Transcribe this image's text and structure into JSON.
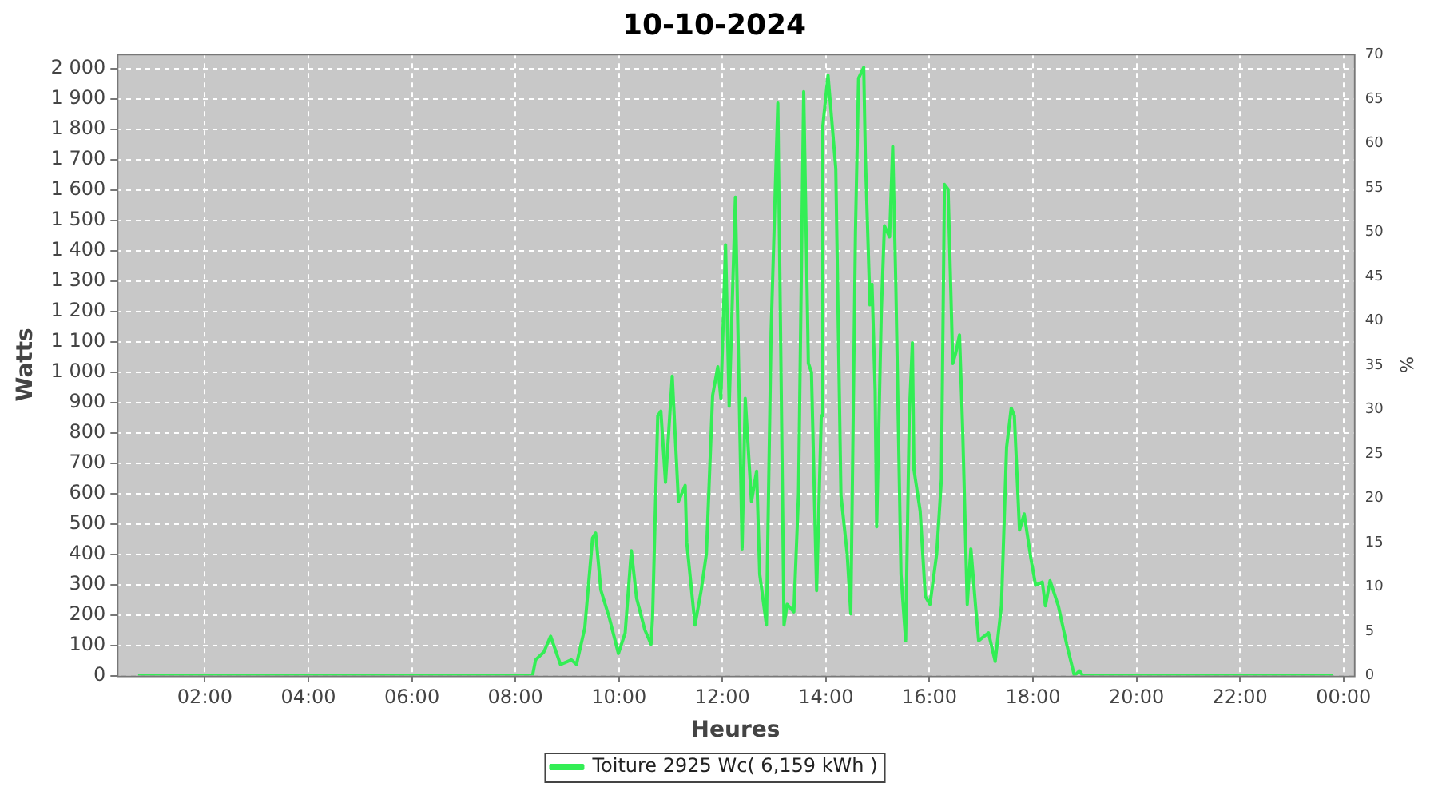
{
  "chart_data": {
    "type": "line",
    "title": "10-10-2024",
    "xlabel": "Heures",
    "ylabel": "Watts",
    "y2label": "%",
    "x": [
      0.71,
      8.33,
      8.39,
      8.55,
      8.68,
      8.87,
      9.08,
      9.18,
      9.34,
      9.49,
      9.55,
      9.65,
      9.81,
      9.99,
      10.12,
      10.24,
      10.34,
      10.5,
      10.62,
      10.65,
      10.75,
      10.81,
      10.9,
      11.03,
      11.15,
      11.28,
      11.31,
      11.47,
      11.59,
      11.69,
      11.81,
      11.91,
      11.97,
      12.06,
      12.13,
      12.25,
      12.38,
      12.44,
      12.56,
      12.66,
      12.72,
      12.85,
      12.94,
      13.07,
      13.19,
      13.25,
      13.38,
      13.47,
      13.57,
      13.66,
      13.72,
      13.82,
      13.91,
      13.94,
      14.04,
      14.19,
      14.29,
      14.41,
      14.48,
      14.57,
      14.63,
      14.73,
      14.76,
      14.85,
      14.89,
      14.95,
      14.98,
      15.07,
      15.13,
      15.23,
      15.29,
      15.35,
      15.45,
      15.54,
      15.61,
      15.67,
      15.7,
      15.82,
      15.92,
      16.01,
      16.14,
      16.23,
      16.29,
      16.36,
      16.45,
      16.51,
      16.58,
      16.64,
      16.73,
      16.8,
      16.89,
      16.95,
      17.14,
      17.27,
      17.39,
      17.49,
      17.58,
      17.64,
      17.74,
      17.83,
      17.96,
      18.05,
      18.18,
      18.24,
      18.33,
      18.49,
      18.65,
      18.8,
      18.9,
      18.96,
      23.79
    ],
    "series": [
      {
        "name": "Toiture 2925 Wc( 6,159 kWh )",
        "color": "#33ee55",
        "values": [
          0,
          0,
          52,
          78,
          130,
          37,
          52,
          37,
          157,
          454,
          470,
          282,
          193,
          73,
          141,
          412,
          256,
          151,
          104,
          193,
          856,
          872,
          637,
          987,
          574,
          627,
          439,
          167,
          282,
          402,
          924,
          1018,
          914,
          1420,
          888,
          1577,
          418,
          914,
          574,
          674,
          334,
          167,
          1133,
          1887,
          167,
          235,
          210,
          600,
          1925,
          1030,
          1000,
          280,
          857,
          1812,
          1979,
          1671,
          595,
          402,
          204,
          1462,
          1969,
          2005,
          1723,
          1222,
          1290,
          940,
          491,
          1201,
          1483,
          1446,
          1744,
          1290,
          334,
          115,
          856,
          1097,
          679,
          543,
          261,
          235,
          402,
          647,
          1619,
          1603,
          1029,
          1065,
          1123,
          820,
          235,
          418,
          230,
          115,
          141,
          47,
          230,
          752,
          882,
          856,
          480,
          533,
          386,
          298,
          308,
          230,
          313,
          230,
          104,
          0,
          16,
          0,
          0
        ]
      }
    ],
    "xlim": [
      0.3,
      24.2
    ],
    "xticks": [
      {
        "value": 2,
        "label": "02:00"
      },
      {
        "value": 4,
        "label": "04:00"
      },
      {
        "value": 6,
        "label": "06:00"
      },
      {
        "value": 8,
        "label": "08:00"
      },
      {
        "value": 10,
        "label": "10:00"
      },
      {
        "value": 12,
        "label": "12:00"
      },
      {
        "value": 14,
        "label": "14:00"
      },
      {
        "value": 16,
        "label": "16:00"
      },
      {
        "value": 18,
        "label": "18:00"
      },
      {
        "value": 20,
        "label": "20:00"
      },
      {
        "value": 22,
        "label": "22:00"
      },
      {
        "value": 24,
        "label": "00:00"
      }
    ],
    "ylim": [
      0,
      2050
    ],
    "yticks": [
      0,
      100,
      200,
      300,
      400,
      500,
      600,
      700,
      800,
      900,
      {
        "value": 1000,
        "label": "1 000"
      },
      {
        "value": 1100,
        "label": "1 100"
      },
      {
        "value": 1200,
        "label": "1 200"
      },
      {
        "value": 1300,
        "label": "1 300"
      },
      {
        "value": 1400,
        "label": "1 400"
      },
      {
        "value": 1500,
        "label": "1 500"
      },
      {
        "value": 1600,
        "label": "1 600"
      },
      {
        "value": 1700,
        "label": "1 700"
      },
      {
        "value": 1800,
        "label": "1 800"
      },
      {
        "value": 1900,
        "label": "1 900"
      },
      {
        "value": 2000,
        "label": "2 000"
      }
    ],
    "y2lim": [
      0,
      70.1
    ],
    "y2ticks": [
      0,
      5,
      10,
      15,
      20,
      25,
      30,
      35,
      40,
      45,
      50,
      55,
      60,
      65,
      70
    ],
    "grid": true,
    "legend": "bottom",
    "marker": "none",
    "line_style": "solid"
  }
}
